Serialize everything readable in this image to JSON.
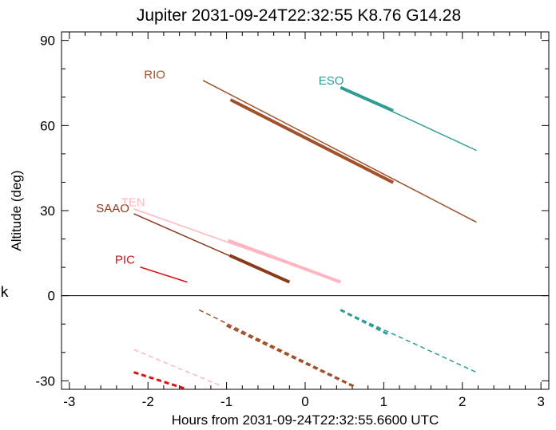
{
  "chart_data": {
    "type": "line",
    "title": "Jupiter 2031-09-24T22:32:55  K8.76  G14.28",
    "xlabel": "Hours from 2031-09-24T22:32:55.6600 UTC",
    "ylabel": "Altitude (deg)",
    "side_label": "k",
    "xlim": [
      -3.1,
      3.1
    ],
    "ylim": [
      -33,
      93
    ],
    "xticks": [
      -3,
      -2,
      -1,
      0,
      1,
      2,
      3
    ],
    "yticks": [
      -30,
      0,
      30,
      60,
      90
    ],
    "grid": false,
    "series": [
      {
        "name": "RIO",
        "color": "#a0522d",
        "label_at": [
          -2.05,
          76.5
        ],
        "line": [
          [
            -1.3,
            75.9
          ],
          [
            2.18,
            25.9
          ]
        ],
        "thick": [
          [
            -0.95,
            69.1
          ],
          [
            1.12,
            39.9
          ]
        ],
        "dashed": [
          [
            -1.35,
            -5
          ],
          [
            0.64,
            -32
          ]
        ],
        "dashed_thick": [
          [
            -1.0,
            -10.5
          ],
          [
            0.62,
            -32
          ]
        ]
      },
      {
        "name": "ESO",
        "color": "#2e9c92",
        "label_at": [
          0.17,
          74.5
        ],
        "line": [
          [
            0.45,
            73.4
          ],
          [
            2.18,
            51.2
          ]
        ],
        "thick": [
          [
            0.45,
            73.4
          ],
          [
            1.12,
            65.2
          ]
        ],
        "dashed": [
          [
            0.45,
            -5
          ],
          [
            2.18,
            -27
          ]
        ],
        "dashed_thick": [
          [
            0.45,
            -5
          ],
          [
            1.05,
            -13.5
          ]
        ]
      },
      {
        "name": "SAAO",
        "color": "#8b3a1a",
        "label_at": [
          -2.66,
          29.5
        ],
        "line": [
          [
            -2.18,
            28.9
          ],
          [
            -0.2,
            4.8
          ]
        ],
        "thick": [
          [
            -0.96,
            14.2
          ],
          [
            -0.2,
            4.8
          ]
        ],
        "dashed": [],
        "dashed_thick": []
      },
      {
        "name": "TEN",
        "color": "#ffb6c1",
        "label_at": [
          -2.34,
          31.5
        ],
        "line": [
          [
            -2.18,
            30.6
          ],
          [
            0.45,
            4.8
          ]
        ],
        "thick": [
          [
            -0.98,
            19.5
          ],
          [
            0.45,
            4.8
          ]
        ],
        "dashed": [
          [
            -2.18,
            -19
          ],
          [
            -1.05,
            -32
          ]
        ],
        "dashed_thick": []
      },
      {
        "name": "PIC",
        "color": "#dd1111",
        "label_at": [
          -2.42,
          11.3
        ],
        "line": [
          [
            -2.1,
            10.1
          ],
          [
            -1.5,
            4.8
          ]
        ],
        "thick": [],
        "dashed": [
          [
            -2.18,
            -27
          ],
          [
            -1.5,
            -33
          ]
        ],
        "dashed_thick": [
          [
            -2.18,
            -27
          ],
          [
            -1.5,
            -33
          ]
        ]
      }
    ]
  }
}
